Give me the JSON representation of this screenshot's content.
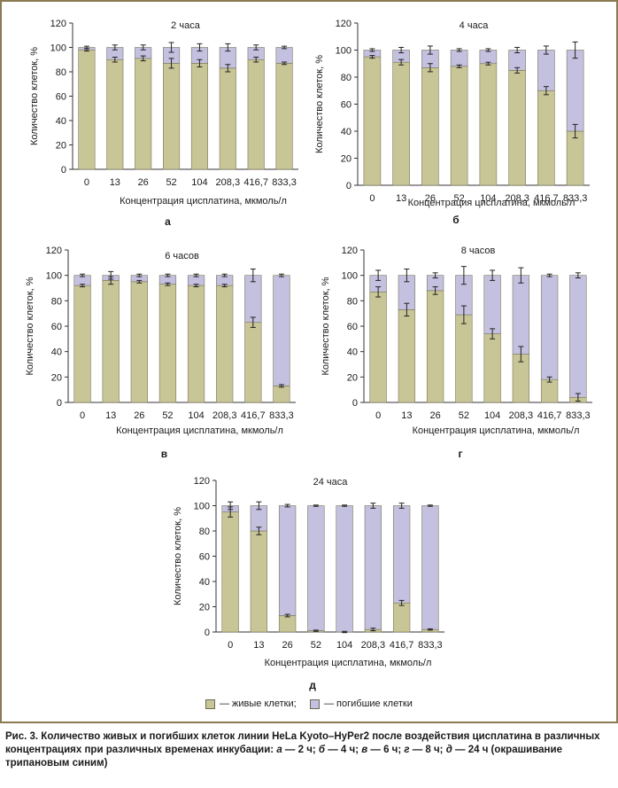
{
  "chart_data": [
    {
      "type": "bar",
      "stacked": true,
      "panel_letter": "а",
      "title": "2 часа",
      "xlabel": "Концентрация цисплатина, мкмоль/л",
      "ylabel": "Количество клеток, %",
      "categories": [
        "0",
        "13",
        "26",
        "52",
        "104",
        "208,3",
        "416,7",
        "833,3"
      ],
      "ylim": [
        0,
        120
      ],
      "yticks": [
        "0",
        "20",
        "40",
        "60",
        "80",
        "100",
        "120"
      ],
      "series": [
        {
          "values": [
            98,
            90,
            91,
            87,
            87,
            83,
            90,
            87
          ],
          "errors": [
            1,
            2,
            2,
            4,
            3,
            3,
            2,
            1
          ]
        },
        {
          "values": [
            2,
            10,
            9,
            13,
            13,
            17,
            10,
            13
          ],
          "errors": [
            1,
            2,
            2,
            4,
            3,
            3,
            2,
            1
          ]
        }
      ]
    },
    {
      "type": "bar",
      "stacked": true,
      "panel_letter": "б",
      "title": "4 часа",
      "xlabel": "Концентрация цисплатина, мкмоль/л",
      "ylabel": "Количество клеток, %",
      "categories": [
        "0",
        "13",
        "26",
        "52",
        "104",
        "208,3",
        "416,7",
        "833,3"
      ],
      "ylim": [
        0,
        120
      ],
      "yticks": [
        "0",
        "20",
        "40",
        "60",
        "80",
        "100",
        "120"
      ],
      "series": [
        {
          "values": [
            95,
            91,
            87,
            88,
            90,
            85,
            70,
            40
          ],
          "errors": [
            1,
            2,
            3,
            1,
            1,
            2,
            3,
            5
          ]
        },
        {
          "values": [
            5,
            9,
            13,
            12,
            10,
            15,
            30,
            60
          ],
          "errors": [
            1,
            2,
            3,
            1,
            1,
            2,
            3,
            6
          ]
        }
      ]
    },
    {
      "type": "bar",
      "stacked": true,
      "panel_letter": "в",
      "title": "6 часов",
      "xlabel": "Концентрация цисплатина, мкмоль/л",
      "ylabel": "Количество клеток, %",
      "categories": [
        "0",
        "13",
        "26",
        "52",
        "104",
        "208,3",
        "416,7",
        "833,3"
      ],
      "ylim": [
        0,
        120
      ],
      "yticks": [
        "0",
        "20",
        "40",
        "60",
        "80",
        "100",
        "120"
      ],
      "series": [
        {
          "values": [
            92,
            96,
            95,
            93,
            92,
            92,
            63,
            13
          ],
          "errors": [
            1,
            3,
            1,
            1,
            1,
            1,
            4,
            1
          ]
        },
        {
          "values": [
            8,
            4,
            5,
            7,
            8,
            8,
            37,
            87
          ],
          "errors": [
            1,
            3,
            1,
            1,
            1,
            1,
            5,
            1
          ]
        }
      ]
    },
    {
      "type": "bar",
      "stacked": true,
      "panel_letter": "г",
      "title": "8 часов",
      "xlabel": "Концентрация цисплатина, мкмоль/л",
      "ylabel": "Количество клеток, %",
      "categories": [
        "0",
        "13",
        "26",
        "52",
        "104",
        "208,3",
        "416,7",
        "833,3"
      ],
      "ylim": [
        0,
        120
      ],
      "yticks": [
        "0",
        "20",
        "40",
        "60",
        "80",
        "100",
        "120"
      ],
      "series": [
        {
          "values": [
            87,
            73,
            88,
            69,
            54,
            38,
            18,
            4
          ],
          "errors": [
            4,
            5,
            3,
            7,
            4,
            6,
            2,
            3
          ]
        },
        {
          "values": [
            13,
            27,
            12,
            31,
            46,
            62,
            82,
            96
          ],
          "errors": [
            4,
            5,
            2,
            7,
            4,
            6,
            1,
            2
          ]
        }
      ]
    },
    {
      "type": "bar",
      "stacked": true,
      "panel_letter": "д",
      "title": "24 часа",
      "xlabel": "Концентрация цисплатина, мкмоль/л",
      "ylabel": "Количество клеток, %",
      "categories": [
        "0",
        "13",
        "26",
        "52",
        "104",
        "208,3",
        "416,7",
        "833,3"
      ],
      "ylim": [
        0,
        120
      ],
      "yticks": [
        "0",
        "20",
        "40",
        "60",
        "80",
        "100",
        "120"
      ],
      "series": [
        {
          "values": [
            95,
            80,
            13,
            1,
            0,
            2,
            23,
            2
          ],
          "errors": [
            4,
            3,
            1,
            0.5,
            0.5,
            1,
            2,
            0.5
          ]
        },
        {
          "values": [
            5,
            20,
            87,
            99,
            100,
            98,
            77,
            98
          ],
          "errors": [
            3,
            3,
            1,
            0.5,
            0.5,
            2,
            2,
            0.5
          ]
        }
      ]
    }
  ],
  "colors": {
    "alive": "#c8c596",
    "dead": "#c4c0e0",
    "frame": "#8b7a52",
    "bar_stroke": "#7a775c"
  },
  "legend": {
    "alive_label": "— живые клетки;",
    "dead_label": "— погибшие клетки"
  },
  "caption": {
    "lead": "Рис. 3. Количество живых и погибших клеток линии HeLa Kyoto–HyPer2 после воздействия цисплатина в различных концентрациях при различных временах инкубации: ",
    "a_letter": "а",
    "a_text": " — 2 ч; ",
    "b_letter": "б",
    "b_text": " — 4 ч; ",
    "v_letter": "в",
    "v_text": " — 6 ч; ",
    "g_letter": "г",
    "g_text": " — 8 ч; ",
    "d_letter": "д",
    "d_text": " — 24 ч (окрашивание трипановым синим)"
  }
}
